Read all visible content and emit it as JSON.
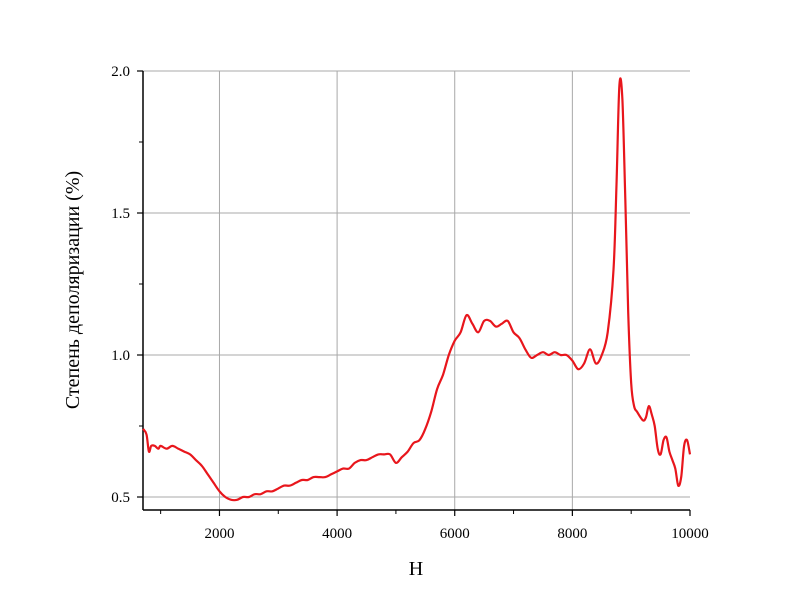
{
  "chart_data": {
    "type": "line",
    "title": "",
    "xlabel": "H",
    "ylabel": "Степень деполяризации (%)",
    "xlim": [
      700,
      10000
    ],
    "ylim": [
      0.45,
      2.0
    ],
    "xticks": [
      2000,
      4000,
      6000,
      8000,
      10000
    ],
    "xtick_labels": [
      "2000",
      "4000",
      "6000",
      "8000",
      "10000"
    ],
    "yticks": [
      0.5,
      1.0,
      1.5,
      2.0
    ],
    "ytick_labels": [
      "0.5",
      "1.0",
      "1.5",
      "2.0"
    ],
    "grid": true,
    "series": [
      {
        "color": "#e8161c",
        "x": [
          700,
          760,
          800,
          840,
          900,
          960,
          1000,
          1100,
          1200,
          1300,
          1400,
          1500,
          1600,
          1700,
          1800,
          1900,
          2000,
          2100,
          2200,
          2300,
          2400,
          2500,
          2600,
          2700,
          2800,
          2900,
          3000,
          3100,
          3200,
          3300,
          3400,
          3500,
          3600,
          3700,
          3800,
          3900,
          4000,
          4100,
          4200,
          4300,
          4400,
          4500,
          4600,
          4700,
          4800,
          4900,
          5000,
          5100,
          5200,
          5300,
          5400,
          5500,
          5600,
          5700,
          5800,
          5900,
          6000,
          6100,
          6200,
          6300,
          6400,
          6500,
          6600,
          6700,
          6800,
          6900,
          7000,
          7100,
          7200,
          7300,
          7400,
          7500,
          7600,
          7700,
          7800,
          7900,
          8000,
          8100,
          8200,
          8300,
          8400,
          8500,
          8600,
          8700,
          8750,
          8800,
          8850,
          8900,
          8950,
          9000,
          9050,
          9100,
          9200,
          9250,
          9300,
          9350,
          9400,
          9450,
          9500,
          9550,
          9600,
          9650,
          9700,
          9750,
          9800,
          9850,
          9900,
          9950,
          10000
        ],
        "y": [
          0.74,
          0.72,
          0.66,
          0.68,
          0.68,
          0.67,
          0.68,
          0.67,
          0.68,
          0.67,
          0.66,
          0.65,
          0.63,
          0.61,
          0.58,
          0.55,
          0.52,
          0.5,
          0.49,
          0.49,
          0.5,
          0.5,
          0.51,
          0.51,
          0.52,
          0.52,
          0.53,
          0.54,
          0.54,
          0.55,
          0.56,
          0.56,
          0.57,
          0.57,
          0.57,
          0.58,
          0.59,
          0.6,
          0.6,
          0.62,
          0.63,
          0.63,
          0.64,
          0.65,
          0.65,
          0.65,
          0.62,
          0.64,
          0.66,
          0.69,
          0.7,
          0.74,
          0.8,
          0.88,
          0.93,
          1.0,
          1.05,
          1.08,
          1.14,
          1.11,
          1.08,
          1.12,
          1.12,
          1.1,
          1.11,
          1.12,
          1.08,
          1.06,
          1.02,
          0.99,
          1.0,
          1.01,
          1.0,
          1.01,
          1.0,
          1.0,
          0.98,
          0.95,
          0.97,
          1.02,
          0.97,
          1.0,
          1.08,
          1.3,
          1.6,
          1.95,
          1.9,
          1.55,
          1.15,
          0.9,
          0.82,
          0.8,
          0.77,
          0.78,
          0.82,
          0.79,
          0.75,
          0.67,
          0.65,
          0.7,
          0.71,
          0.66,
          0.63,
          0.6,
          0.54,
          0.57,
          0.68,
          0.7,
          0.65
        ]
      }
    ]
  }
}
